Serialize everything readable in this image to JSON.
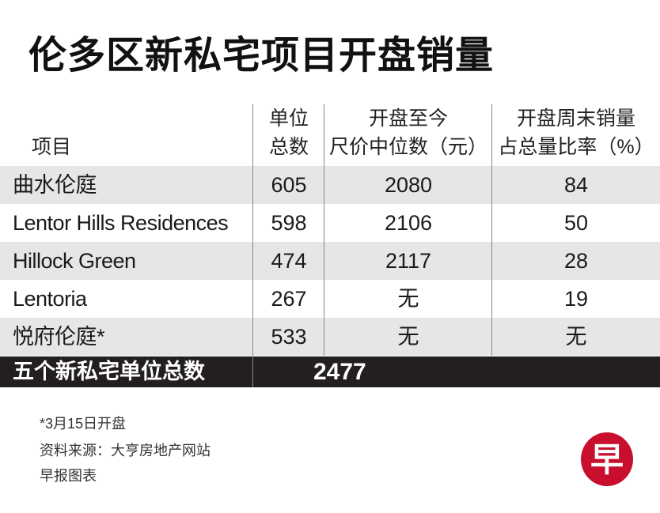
{
  "title": "伦多区新私宅项目开盘销量",
  "chart_data": {
    "type": "table",
    "columns": [
      "项目",
      "单位\n总数",
      "开盘至今\n尺价中位数（元）",
      "开盘周末销量\n占总量比率（%）"
    ],
    "rows": [
      [
        "曲水伦庭",
        "605",
        "2080",
        "84"
      ],
      [
        "Lentor Hills Residences",
        "598",
        "2106",
        "50"
      ],
      [
        "Hillock Green",
        "474",
        "2117",
        "28"
      ],
      [
        "Lentoria",
        "267",
        "无",
        "19"
      ],
      [
        "悦府伦庭*",
        "533",
        "无",
        "无"
      ]
    ],
    "total": {
      "label": "五个新私宅单位总数",
      "value": "2477"
    }
  },
  "header": {
    "c0": "项目",
    "c1a": "单位",
    "c1b": "总数",
    "c2a": "开盘至今",
    "c2b": "尺价中位数（元）",
    "c3a": "开盘周末销量",
    "c3b": "占总量比率（%）"
  },
  "notes": {
    "footnote": "*3月15日开盘",
    "source": "资料来源：大亨房地产网站",
    "credit": "早报图表"
  },
  "logo": {
    "text": "早",
    "color": "#c8102e"
  }
}
